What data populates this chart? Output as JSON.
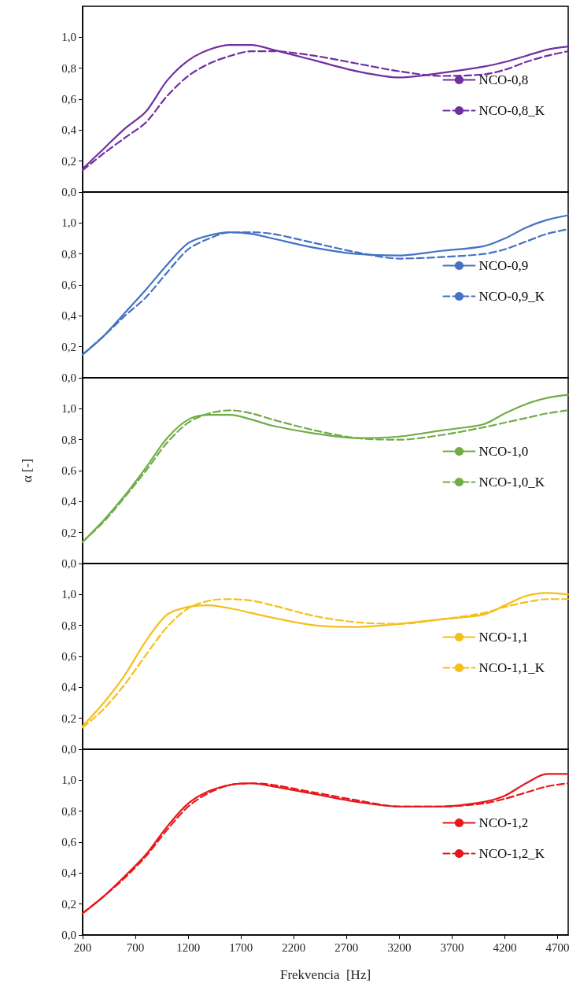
{
  "chart_data": [
    {
      "type": "line",
      "x": [
        200,
        400,
        600,
        800,
        1000,
        1200,
        1400,
        1600,
        1800,
        2000,
        2400,
        2800,
        3200,
        3600,
        4000,
        4200,
        4400,
        4600,
        4800
      ],
      "xlim": [
        200,
        4800
      ],
      "xticks": [
        200,
        700,
        1200,
        1700,
        2200,
        2700,
        3200,
        3700,
        4200,
        4700
      ],
      "ylim": [
        0,
        1.2
      ],
      "yticks": [
        {
          "value": 0,
          "label": "0,0"
        },
        {
          "value": 0.2,
          "label": "0,2"
        },
        {
          "value": 0.4,
          "label": "0,4"
        },
        {
          "value": 0.6,
          "label": "0,6"
        },
        {
          "value": 0.8,
          "label": "0,8"
        },
        {
          "value": 1,
          "label": "1,0"
        }
      ],
      "tick_labels": "y",
      "legend": "right",
      "marker": "none",
      "grid": false,
      "series": [
        {
          "name": "NCO-0,8",
          "color": "#7030a0",
          "line_style": "solid",
          "values": [
            0.15,
            0.28,
            0.41,
            0.52,
            0.72,
            0.85,
            0.92,
            0.95,
            0.95,
            0.92,
            0.85,
            0.78,
            0.74,
            0.77,
            0.81,
            0.84,
            0.88,
            0.92,
            0.94
          ]
        },
        {
          "name": "NCO-0,8_K",
          "color": "#7030a0",
          "line_style": "dashed",
          "values": [
            0.14,
            0.25,
            0.35,
            0.45,
            0.62,
            0.75,
            0.83,
            0.88,
            0.91,
            0.91,
            0.88,
            0.83,
            0.78,
            0.75,
            0.76,
            0.79,
            0.84,
            0.88,
            0.91
          ]
        }
      ]
    },
    {
      "type": "line",
      "x": [
        200,
        400,
        600,
        800,
        1000,
        1200,
        1400,
        1600,
        1800,
        2000,
        2400,
        2800,
        3200,
        3600,
        4000,
        4200,
        4400,
        4600,
        4800
      ],
      "xlim": [
        200,
        4800
      ],
      "xticks": [
        200,
        700,
        1200,
        1700,
        2200,
        2700,
        3200,
        3700,
        4200,
        4700
      ],
      "ylim": [
        0,
        1.2
      ],
      "yticks": [
        {
          "value": 0,
          "label": "0,0"
        },
        {
          "value": 0.2,
          "label": "0,2"
        },
        {
          "value": 0.4,
          "label": "0,4"
        },
        {
          "value": 0.6,
          "label": "0,6"
        },
        {
          "value": 0.8,
          "label": "0,8"
        },
        {
          "value": 1,
          "label": "1,0"
        }
      ],
      "tick_labels": "y",
      "legend": "right",
      "marker": "none",
      "grid": false,
      "series": [
        {
          "name": "NCO-0,9",
          "color": "#4472c4",
          "line_style": "solid",
          "values": [
            0.15,
            0.27,
            0.42,
            0.57,
            0.73,
            0.87,
            0.92,
            0.94,
            0.93,
            0.9,
            0.84,
            0.8,
            0.79,
            0.82,
            0.85,
            0.9,
            0.97,
            1.02,
            1.05
          ]
        },
        {
          "name": "NCO-0,9_K",
          "color": "#4472c4",
          "line_style": "dashed",
          "values": [
            0.15,
            0.27,
            0.4,
            0.52,
            0.68,
            0.83,
            0.9,
            0.94,
            0.94,
            0.93,
            0.87,
            0.81,
            0.77,
            0.78,
            0.8,
            0.83,
            0.88,
            0.93,
            0.96
          ]
        }
      ]
    },
    {
      "type": "line",
      "ylabel": "α [-]",
      "x": [
        200,
        400,
        600,
        800,
        1000,
        1200,
        1400,
        1600,
        1800,
        2000,
        2400,
        2800,
        3200,
        3600,
        4000,
        4200,
        4400,
        4600,
        4800
      ],
      "xlim": [
        200,
        4800
      ],
      "xticks": [
        200,
        700,
        1200,
        1700,
        2200,
        2700,
        3200,
        3700,
        4200,
        4700
      ],
      "ylim": [
        0,
        1.2
      ],
      "yticks": [
        {
          "value": 0,
          "label": "0,0"
        },
        {
          "value": 0.2,
          "label": "0,2"
        },
        {
          "value": 0.4,
          "label": "0,4"
        },
        {
          "value": 0.6,
          "label": "0,6"
        },
        {
          "value": 0.8,
          "label": "0,8"
        },
        {
          "value": 1,
          "label": "1,0"
        }
      ],
      "tick_labels": "y",
      "legend": "right",
      "marker": "none",
      "grid": false,
      "series": [
        {
          "name": "NCO-1,0",
          "color": "#70ad47",
          "line_style": "solid",
          "values": [
            0.14,
            0.28,
            0.44,
            0.62,
            0.81,
            0.93,
            0.96,
            0.96,
            0.93,
            0.89,
            0.84,
            0.81,
            0.82,
            0.86,
            0.9,
            0.97,
            1.03,
            1.07,
            1.09
          ]
        },
        {
          "name": "NCO-1,0_K",
          "color": "#70ad47",
          "line_style": "dashed",
          "values": [
            0.14,
            0.27,
            0.43,
            0.6,
            0.78,
            0.91,
            0.97,
            0.99,
            0.97,
            0.93,
            0.86,
            0.81,
            0.8,
            0.83,
            0.88,
            0.91,
            0.94,
            0.97,
            0.99
          ]
        }
      ]
    },
    {
      "type": "line",
      "x": [
        200,
        400,
        600,
        800,
        1000,
        1200,
        1400,
        1600,
        1800,
        2000,
        2400,
        2800,
        3200,
        3600,
        4000,
        4200,
        4400,
        4600,
        4800
      ],
      "xlim": [
        200,
        4800
      ],
      "xticks": [
        200,
        700,
        1200,
        1700,
        2200,
        2700,
        3200,
        3700,
        4200,
        4700
      ],
      "ylim": [
        0,
        1.2
      ],
      "yticks": [
        {
          "value": 0,
          "label": "0,0"
        },
        {
          "value": 0.2,
          "label": "0,2"
        },
        {
          "value": 0.4,
          "label": "0,4"
        },
        {
          "value": 0.6,
          "label": "0,6"
        },
        {
          "value": 0.8,
          "label": "0,8"
        },
        {
          "value": 1,
          "label": "1,0"
        }
      ],
      "tick_labels": "y",
      "legend": "right",
      "marker": "none",
      "grid": false,
      "series": [
        {
          "name": "NCO-1,1",
          "color": "#f5bf1a",
          "line_style": "solid",
          "values": [
            0.15,
            0.3,
            0.48,
            0.7,
            0.87,
            0.92,
            0.93,
            0.91,
            0.88,
            0.85,
            0.8,
            0.79,
            0.81,
            0.84,
            0.87,
            0.93,
            0.99,
            1.01,
            1.0
          ]
        },
        {
          "name": "NCO-1,1_K",
          "color": "#f5bf1a",
          "line_style": "dashed",
          "values": [
            0.14,
            0.26,
            0.42,
            0.61,
            0.79,
            0.91,
            0.96,
            0.97,
            0.96,
            0.93,
            0.86,
            0.82,
            0.81,
            0.84,
            0.88,
            0.92,
            0.95,
            0.97,
            0.97
          ]
        }
      ]
    },
    {
      "type": "line",
      "xlabel": "Frekvencia  [Hz]",
      "x": [
        200,
        400,
        600,
        800,
        1000,
        1200,
        1400,
        1600,
        1800,
        2000,
        2400,
        2800,
        3200,
        3600,
        4000,
        4200,
        4400,
        4600,
        4800
      ],
      "xlim": [
        200,
        4800
      ],
      "xticks": [
        200,
        700,
        1200,
        1700,
        2200,
        2700,
        3200,
        3700,
        4200,
        4700
      ],
      "ylim": [
        0,
        1.2
      ],
      "yticks": [
        {
          "value": 0,
          "label": "0,0"
        },
        {
          "value": 0.2,
          "label": "0,2"
        },
        {
          "value": 0.4,
          "label": "0,4"
        },
        {
          "value": 0.6,
          "label": "0,6"
        },
        {
          "value": 0.8,
          "label": "0,8"
        },
        {
          "value": 1,
          "label": "1,0"
        }
      ],
      "legend": "right",
      "marker": "none",
      "grid": false,
      "series": [
        {
          "name": "NCO-1,2",
          "color": "#e8161b",
          "line_style": "solid",
          "values": [
            0.14,
            0.25,
            0.38,
            0.52,
            0.7,
            0.85,
            0.93,
            0.97,
            0.98,
            0.96,
            0.91,
            0.86,
            0.83,
            0.83,
            0.86,
            0.9,
            0.98,
            1.04,
            1.04
          ]
        },
        {
          "name": "NCO-1,2_K",
          "color": "#e8161b",
          "line_style": "dashed",
          "values": [
            0.14,
            0.25,
            0.37,
            0.51,
            0.68,
            0.83,
            0.92,
            0.97,
            0.98,
            0.97,
            0.92,
            0.87,
            0.83,
            0.83,
            0.85,
            0.88,
            0.92,
            0.96,
            0.98
          ]
        }
      ]
    }
  ]
}
